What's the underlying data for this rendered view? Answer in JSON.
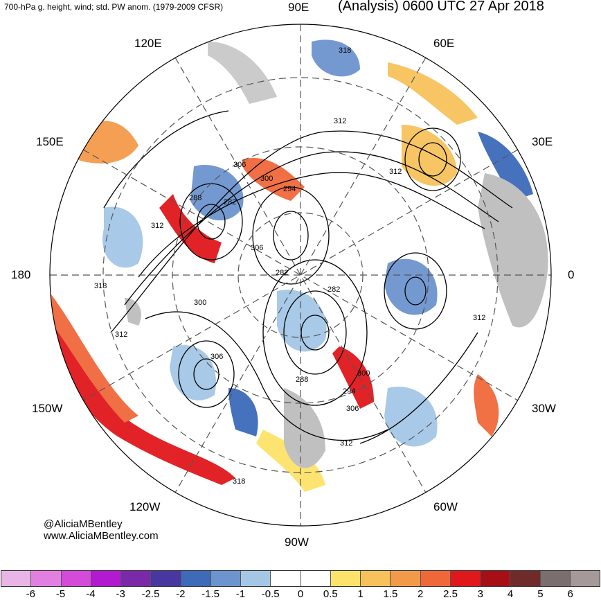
{
  "header": {
    "left_title": "700-hPa g. height, wind; std. PW anom. (1979-2009 CFSR)",
    "right_title": "(Analysis) 0600 UTC 27 Apr 2018"
  },
  "longitude_labels": {
    "e90": "90E",
    "e60": "60E",
    "e30": "30E",
    "zero": "0",
    "w30": "30W",
    "w60": "60W",
    "w90": "90W",
    "w120": "120W",
    "w150": "150W",
    "lon180": "180",
    "e150": "150E",
    "e120": "120E"
  },
  "contour_labels": [
    "318",
    "312",
    "306",
    "300",
    "294",
    "288",
    "282",
    "312",
    "282",
    "282",
    "288",
    "294",
    "300",
    "306",
    "312",
    "300",
    "306",
    "312",
    "318",
    "312",
    "312",
    "306",
    "318"
  ],
  "credit": {
    "handle": "@AliciaMBentley",
    "site": "www.AliciaMBentley.com"
  },
  "colorbar": {
    "colors": [
      "#e7b6e6",
      "#e27fe0",
      "#d34bd8",
      "#b11ad1",
      "#7a2aa8",
      "#4837a0",
      "#3d6ab9",
      "#6d94cf",
      "#a4c7e6",
      "#ffffff",
      "#ffffff",
      "#fde36a",
      "#f7c25c",
      "#f39a4a",
      "#f0683a",
      "#e0181c",
      "#a50f15",
      "#6f2a2a",
      "#7b6e6e",
      "#a59999"
    ],
    "tick_labels": [
      "-6",
      "-5",
      "-4",
      "-3",
      "-2.5",
      "-2",
      "-1.5",
      "-1",
      "-0.5",
      "0",
      "0.5",
      "1",
      "1.5",
      "2",
      "2.5",
      "3",
      "4",
      "5",
      "6"
    ]
  }
}
